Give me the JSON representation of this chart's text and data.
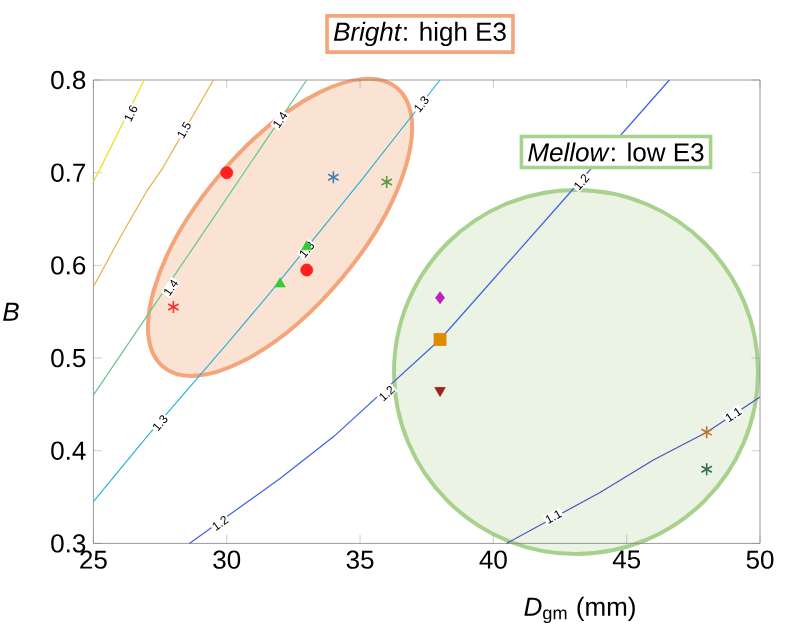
{
  "chart_data": {
    "type": "scatter",
    "xlabel": "*D*$_{gm}$ (mm)",
    "ylabel": "*B*",
    "xlim": [
      25,
      50
    ],
    "ylim": [
      0.3,
      0.8
    ],
    "xticks": [
      25,
      30,
      35,
      40,
      45,
      50
    ],
    "yticks": [
      0.3,
      0.4,
      0.5,
      0.6,
      0.7,
      0.8
    ],
    "series": [
      {
        "type": "line",
        "color": "#e8e020",
        "marker": "none",
        "x": [
          25,
          25.7,
          26.9
        ],
        "values": [
          0.69,
          0.73,
          0.8
        ]
      },
      {
        "type": "line",
        "color": "#e8b040",
        "marker": "none",
        "x": [
          25,
          26,
          27,
          27.6,
          29.5
        ],
        "values": [
          0.577,
          0.63,
          0.68,
          0.705,
          0.8
        ]
      },
      {
        "type": "line",
        "color": "#60c890",
        "marker": "none",
        "x": [
          25,
          27,
          29,
          31,
          33
        ],
        "values": [
          0.46,
          0.545,
          0.63,
          0.715,
          0.8
        ]
      },
      {
        "type": "line",
        "color": "#30b0d8",
        "marker": "none",
        "x": [
          25,
          27,
          30,
          31.5,
          35,
          38
        ],
        "values": [
          0.345,
          0.415,
          0.515,
          0.566,
          0.69,
          0.8
        ]
      },
      {
        "type": "line",
        "color": "#4060e0",
        "marker": "none",
        "x": [
          28.6,
          32,
          34,
          38,
          40,
          42,
          46.6
        ],
        "values": [
          0.3,
          0.37,
          0.415,
          0.52,
          0.585,
          0.65,
          0.8
        ]
      },
      {
        "type": "line",
        "color": "#5050c0",
        "marker": "none",
        "x": [
          40.5,
          44,
          46,
          48,
          50
        ],
        "values": [
          0.3,
          0.355,
          0.39,
          0.42,
          0.458
        ]
      },
      {
        "color": "#ff2020",
        "marker": "circle",
        "x": [
          30,
          33
        ],
        "values": [
          0.7,
          0.595
        ]
      },
      {
        "color": "#ff3030",
        "marker": "cross",
        "x": [
          28
        ],
        "values": [
          0.555
        ]
      },
      {
        "color": "#33cc33",
        "marker": "triangle",
        "x": [
          32,
          33
        ],
        "values": [
          0.58,
          0.62
        ]
      },
      {
        "color": "#4a7fb0",
        "marker": "cross",
        "x": [
          34
        ],
        "values": [
          0.695
        ]
      },
      {
        "color": "#5a9a40",
        "marker": "cross",
        "x": [
          36
        ],
        "values": [
          0.69
        ]
      },
      {
        "color": "#c020c0",
        "marker": "diamond",
        "x": [
          38
        ],
        "values": [
          0.565
        ]
      },
      {
        "color": "#e08a00",
        "marker": "square",
        "x": [
          38
        ],
        "values": [
          0.52
        ]
      },
      {
        "color": "#a02020",
        "marker": "triangle-down",
        "x": [
          38
        ],
        "values": [
          0.465
        ]
      },
      {
        "color": "#c0703a",
        "marker": "cross",
        "x": [
          48
        ],
        "values": [
          0.42
        ]
      },
      {
        "color": "#2e7050",
        "marker": "cross",
        "x": [
          48
        ],
        "values": [
          0.38
        ]
      }
    ],
    "annotations": [
      "*Bright*: high E3",
      "*Mellow*: low E3",
      {
        "text": "1.6",
        "x": 26.4,
        "y": 0.764
      },
      {
        "text": "1.5",
        "x": 28.4,
        "y": 0.746
      },
      {
        "text": "1.4",
        "x": 32.0,
        "y": 0.757
      },
      {
        "text": "1.4",
        "x": 27.9,
        "y": 0.576
      },
      {
        "text": "1.3",
        "x": 37.3,
        "y": 0.774
      },
      {
        "text": "1.3",
        "x": 33.0,
        "y": 0.617
      },
      {
        "text": "1.3",
        "x": 27.5,
        "y": 0.43
      },
      {
        "text": "1.2",
        "x": 29.75,
        "y": 0.322
      },
      {
        "text": "1.2",
        "x": 36.0,
        "y": 0.462
      },
      {
        "text": "1.2",
        "x": 43.3,
        "y": 0.69
      },
      {
        "text": "1.1",
        "x": 42.25,
        "y": 0.329
      },
      {
        "text": "1.1",
        "x": 49.0,
        "y": 0.439
      }
    ]
  }
}
